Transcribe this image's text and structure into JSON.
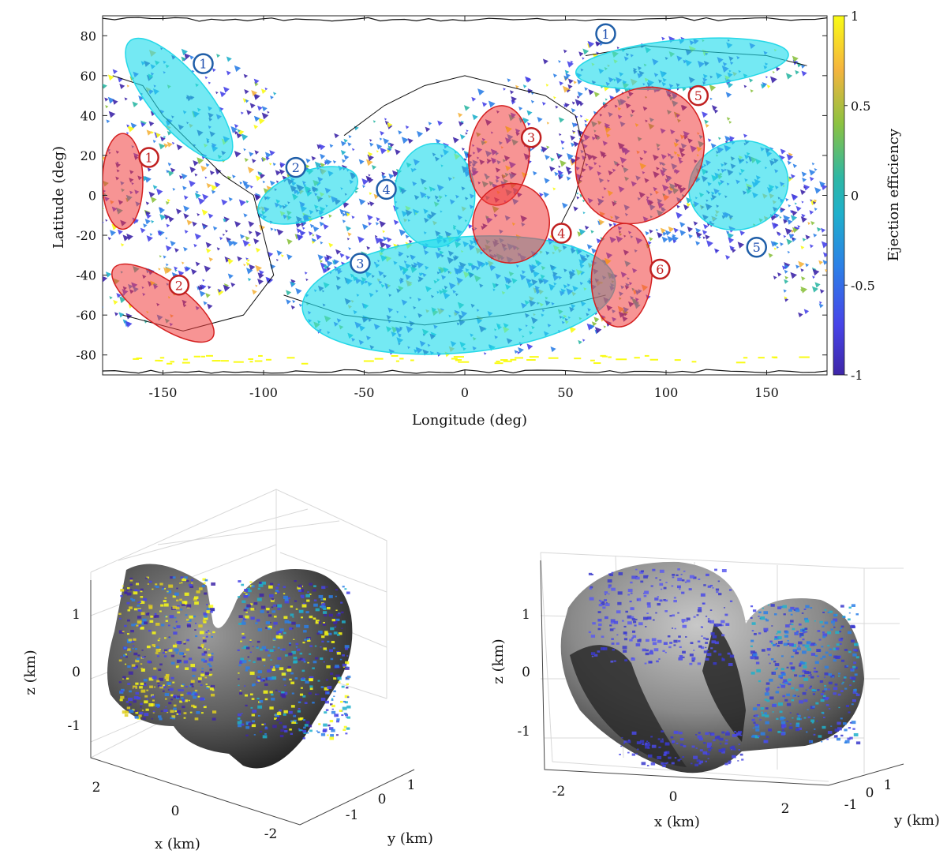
{
  "chart_data": [
    {
      "type": "heatmap",
      "xlabel": "Longitude (deg)",
      "ylabel": "Latitude (deg)",
      "xlim": [
        -180,
        180
      ],
      "ylim": [
        -90,
        90
      ],
      "xticks": [
        -150,
        -100,
        -50,
        0,
        50,
        100,
        150
      ],
      "yticks": [
        80,
        60,
        40,
        20,
        0,
        -20,
        -40,
        -60,
        -80
      ],
      "colorbar": {
        "label": "Ejection efficiency",
        "range": [
          -1,
          1
        ],
        "ticks": [
          "1",
          "0.5",
          "0",
          "-0.5",
          "-1"
        ],
        "tick_values": [
          1,
          0.5,
          0,
          -0.5,
          -1
        ],
        "colors": [
          "#3e26a8",
          "#4744e8",
          "#2c7fe7",
          "#1fb0cb",
          "#2eb7a4",
          "#8cc240",
          "#f5b43e",
          "#f9fb15"
        ]
      },
      "regions": [
        {
          "label": "1",
          "kind": "cyan",
          "lon": -142,
          "lat": 48,
          "rx": 38,
          "ry": 14,
          "rot": 50,
          "label_lon": -130,
          "label_lat": 66
        },
        {
          "label": "1",
          "kind": "cyan",
          "lon": 108,
          "lat": 66,
          "rx": 53,
          "ry": 12,
          "rot": -5,
          "label_lon": 70,
          "label_lat": 81
        },
        {
          "label": "2",
          "kind": "cyan",
          "lon": -78,
          "lat": 0,
          "rx": 26,
          "ry": 12,
          "rot": -20,
          "label_lon": -84,
          "label_lat": 14
        },
        {
          "label": "3",
          "kind": "cyan",
          "lon": -3,
          "lat": -50,
          "rx": 78,
          "ry": 29,
          "rot": -5,
          "label_lon": -52,
          "label_lat": -34
        },
        {
          "label": "4",
          "kind": "cyan",
          "lon": -15,
          "lat": 0,
          "rx": 20,
          "ry": 26,
          "rot": 0,
          "label_lon": -39,
          "label_lat": 3
        },
        {
          "label": "5",
          "kind": "cyan",
          "lon": 136,
          "lat": 5,
          "rx": 25,
          "ry": 22,
          "rot": -20,
          "label_lon": 145,
          "label_lat": -26
        },
        {
          "label": "1",
          "kind": "red",
          "lon": -170,
          "lat": 7,
          "rx": 10,
          "ry": 24,
          "rot": 0,
          "label_lon": -157,
          "label_lat": 19
        },
        {
          "label": "2",
          "kind": "red",
          "lon": -150,
          "lat": -54,
          "rx": 30,
          "ry": 11,
          "rot": 35,
          "label_lon": -142,
          "label_lat": -45
        },
        {
          "label": "3",
          "kind": "red",
          "lon": 17,
          "lat": 20,
          "rx": 15,
          "ry": 25,
          "rot": 5,
          "label_lon": 33,
          "label_lat": 29
        },
        {
          "label": "4",
          "kind": "red",
          "lon": 23,
          "lat": -14,
          "rx": 19,
          "ry": 20,
          "rot": 15,
          "label_lon": 48,
          "label_lat": -19
        },
        {
          "label": "5",
          "kind": "red",
          "lon": 87,
          "lat": 20,
          "rx": 30,
          "ry": 36,
          "rot": 35,
          "label_lon": 116,
          "label_lat": 50
        },
        {
          "label": "6",
          "kind": "red",
          "lon": 78,
          "lat": -40,
          "rx": 15,
          "ry": 26,
          "rot": 5,
          "label_lon": 97,
          "label_lat": -37
        }
      ]
    },
    {
      "type": "3d-surface",
      "xlabel": "x (km)",
      "ylabel": "y (km)",
      "zlabel": "z (km)",
      "xticks": [
        "2",
        "0",
        "-2"
      ],
      "yticks": [
        "-1",
        "0",
        "1"
      ],
      "zticks": [
        "1",
        "0",
        "-1"
      ]
    },
    {
      "type": "3d-surface",
      "xlabel": "x (km)",
      "ylabel": "y (km)",
      "zlabel": "z (km)",
      "xticks": [
        "-2",
        "0",
        "2"
      ],
      "yticks": [
        "-1",
        "0",
        "1"
      ],
      "zticks": [
        "1",
        "0",
        "-1"
      ]
    }
  ]
}
